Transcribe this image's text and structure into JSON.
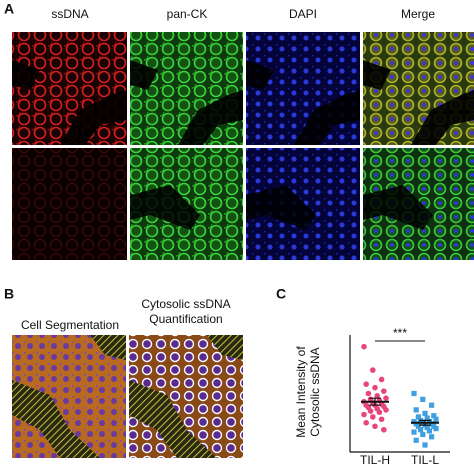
{
  "panel_labels": [
    "A",
    "B",
    "C"
  ],
  "panel_a": {
    "columns": [
      "ssDNA",
      "pan-CK",
      "DAPI",
      "Merge"
    ]
  },
  "panel_b": {
    "labels": [
      "Cell Segmentation",
      [
        "Cytosolic ssDNA",
        "Quantification"
      ]
    ]
  },
  "chart_data": {
    "type": "dot",
    "y_label": [
      "Mean Intensity of",
      "Cytosolic ssDNA"
    ],
    "categories": [
      "TIL-H",
      "TIL-L"
    ],
    "ylim": [
      0,
      100
    ],
    "significance": "***",
    "groups": [
      {
        "color": "#e8457e",
        "mean": 43,
        "error": 3,
        "values": [
          90,
          70,
          62,
          58,
          55,
          52,
          50,
          48,
          46,
          45,
          44,
          43,
          42,
          41,
          40,
          40,
          39,
          38,
          37,
          36,
          35,
          34,
          32,
          30,
          28,
          25,
          22,
          19
        ]
      },
      {
        "color": "#3fa0e0",
        "mean": 25,
        "error": 2,
        "values": [
          50,
          45,
          40,
          36,
          33,
          31,
          30,
          29,
          28,
          27,
          26,
          26,
          25,
          24,
          24,
          23,
          22,
          22,
          21,
          20,
          19,
          18,
          17,
          15,
          13,
          10,
          6
        ]
      }
    ]
  }
}
